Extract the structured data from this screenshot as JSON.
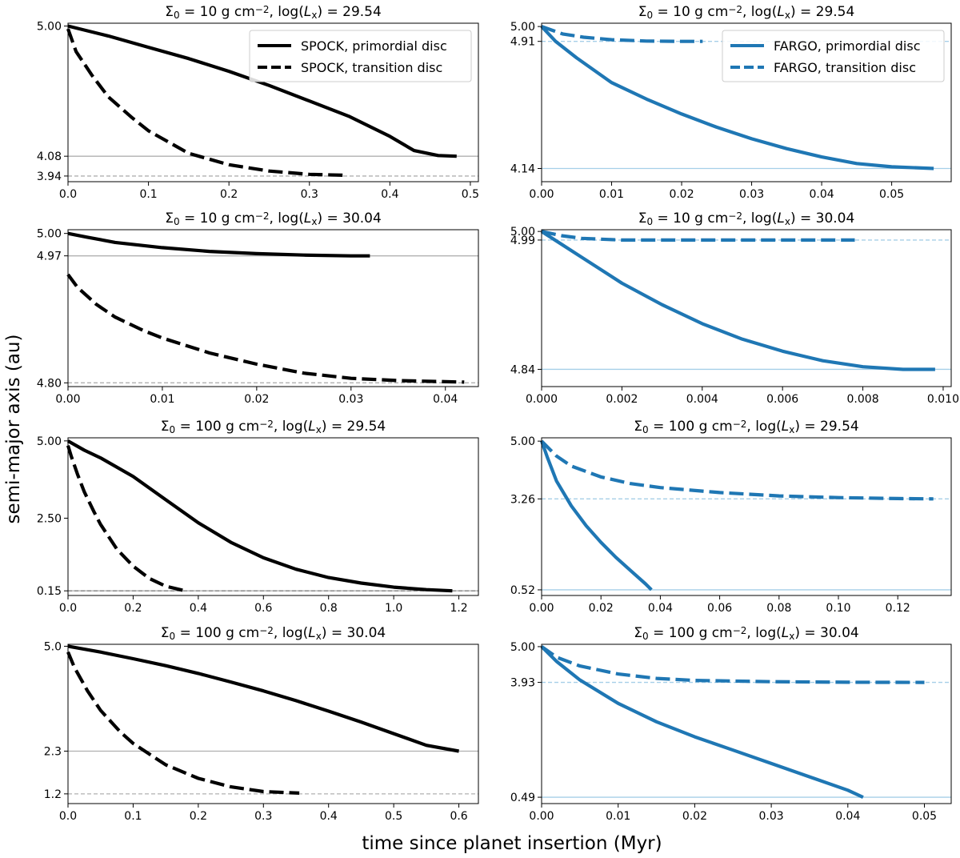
{
  "figure": {
    "ylabel": "semi-major axis (au)",
    "xlabel": "time since planet insertion (Myr)"
  },
  "colors": {
    "spock": "#000000",
    "fargo": "#1f77b4",
    "spock_ref": "#b0b0b0",
    "fargo_ref": "#a6cfe8"
  },
  "chart_data": [
    {
      "id": "p11",
      "type": "line",
      "row": 0,
      "col": 0,
      "title_parts": [
        "Σ",
        "0",
        " = 10 g cm",
        "−2",
        ", log(",
        "L",
        "x",
        ") = 29.54"
      ],
      "xlim": [
        0,
        0.51
      ],
      "ylim": [
        3.9,
        5.02
      ],
      "xticks": [
        "0.0",
        "0.1",
        "0.2",
        "0.3",
        "0.4",
        "0.5"
      ],
      "yticks": [
        "5.00",
        "4.08",
        "3.94"
      ],
      "reference_lines": [
        {
          "y": 4.08,
          "style": "solid",
          "color": "#b0b0b0"
        },
        {
          "y": 3.94,
          "style": "dashed",
          "color": "#b0b0b0"
        }
      ],
      "legend": {
        "position": "top-right",
        "entries": [
          {
            "label": "SPOCK, primordial disc",
            "style": "solid",
            "color": "#000000"
          },
          {
            "label": "SPOCK, transition disc",
            "style": "dashed",
            "color": "#000000"
          }
        ]
      },
      "series": [
        {
          "name": "SPOCK, primordial disc",
          "style": "solid",
          "color": "#000000",
          "x": [
            0,
            0.05,
            0.1,
            0.15,
            0.2,
            0.25,
            0.3,
            0.35,
            0.4,
            0.43,
            0.46,
            0.483
          ],
          "y": [
            5.0,
            4.93,
            4.85,
            4.77,
            4.68,
            4.58,
            4.47,
            4.36,
            4.22,
            4.12,
            4.085,
            4.08
          ]
        },
        {
          "name": "SPOCK, transition disc",
          "style": "dashed",
          "color": "#000000",
          "x": [
            0,
            0.01,
            0.03,
            0.05,
            0.08,
            0.1,
            0.15,
            0.2,
            0.25,
            0.3,
            0.345
          ],
          "y": [
            4.98,
            4.82,
            4.65,
            4.5,
            4.35,
            4.26,
            4.1,
            4.02,
            3.975,
            3.952,
            3.945
          ]
        }
      ]
    },
    {
      "id": "p12",
      "type": "line",
      "row": 0,
      "col": 1,
      "title_parts": [
        "Σ",
        "0",
        " = 10 g cm",
        "−2",
        ", log(",
        "L",
        "x",
        ") = 29.54"
      ],
      "xlim": [
        0,
        0.0585
      ],
      "ylim": [
        4.06,
        5.02
      ],
      "xticks": [
        "0.00",
        "0.01",
        "0.02",
        "0.03",
        "0.04",
        "0.05"
      ],
      "yticks": [
        "5.00",
        "4.91",
        "4.14"
      ],
      "reference_lines": [
        {
          "y": 4.91,
          "style": "dashed",
          "color": "#a6cfe8"
        },
        {
          "y": 4.14,
          "style": "solid",
          "color": "#a6cfe8"
        }
      ],
      "legend": {
        "position": "top-right",
        "entries": [
          {
            "label": "FARGO, primordial disc",
            "style": "solid",
            "color": "#1f77b4"
          },
          {
            "label": "FARGO, transition disc",
            "style": "dashed",
            "color": "#1f77b4"
          }
        ]
      },
      "series": [
        {
          "name": "FARGO, primordial disc",
          "style": "solid",
          "color": "#1f77b4",
          "x": [
            0,
            0.002,
            0.005,
            0.01,
            0.015,
            0.02,
            0.025,
            0.03,
            0.035,
            0.04,
            0.045,
            0.05,
            0.056
          ],
          "y": [
            5.0,
            4.91,
            4.81,
            4.66,
            4.56,
            4.47,
            4.39,
            4.32,
            4.26,
            4.21,
            4.17,
            4.15,
            4.14
          ]
        },
        {
          "name": "FARGO, transition disc",
          "style": "dashed",
          "color": "#1f77b4",
          "x": [
            0,
            0.003,
            0.006,
            0.01,
            0.015,
            0.02,
            0.023
          ],
          "y": [
            5.0,
            4.955,
            4.935,
            4.92,
            4.912,
            4.91,
            4.91
          ]
        }
      ]
    },
    {
      "id": "p21",
      "type": "line",
      "row": 1,
      "col": 0,
      "title_parts": [
        "Σ",
        "0",
        " = 10 g cm",
        "−2",
        ", log(",
        "L",
        "x",
        ") = 30.04"
      ],
      "xlim": [
        0,
        0.0435
      ],
      "ylim": [
        4.795,
        5.005
      ],
      "xticks": [
        "0.00",
        "0.01",
        "0.02",
        "0.03",
        "0.04"
      ],
      "yticks": [
        "5.00",
        "4.97",
        "4.80"
      ],
      "reference_lines": [
        {
          "y": 4.97,
          "style": "solid",
          "color": "#b0b0b0"
        },
        {
          "y": 4.8,
          "style": "dashed",
          "color": "#b0b0b0"
        }
      ],
      "series": [
        {
          "name": "",
          "style": "solid",
          "color": "#000000",
          "x": [
            0,
            0.002,
            0.005,
            0.01,
            0.015,
            0.02,
            0.025,
            0.03,
            0.032
          ],
          "y": [
            5.0,
            4.995,
            4.988,
            4.981,
            4.976,
            4.973,
            4.971,
            4.97,
            4.97
          ]
        },
        {
          "name": "",
          "style": "dashed",
          "color": "#000000",
          "x": [
            0,
            0.001,
            0.003,
            0.005,
            0.008,
            0.01,
            0.015,
            0.02,
            0.025,
            0.03,
            0.035,
            0.042
          ],
          "y": [
            4.945,
            4.928,
            4.905,
            4.888,
            4.87,
            4.86,
            4.84,
            4.825,
            4.813,
            4.806,
            4.803,
            4.801
          ]
        }
      ]
    },
    {
      "id": "p22",
      "type": "line",
      "row": 1,
      "col": 1,
      "title_parts": [
        "Σ",
        "0",
        " = 10 g cm",
        "−2",
        ", log(",
        "L",
        "x",
        ") = 30.04"
      ],
      "xlim": [
        0,
        0.0102
      ],
      "ylim": [
        4.82,
        5.002
      ],
      "xticks": [
        "0.000",
        "0.002",
        "0.004",
        "0.006",
        "0.008",
        "0.010"
      ],
      "yticks": [
        "5.00",
        "4.99",
        "4.84"
      ],
      "reference_lines": [
        {
          "y": 4.99,
          "style": "dashed",
          "color": "#a6cfe8"
        },
        {
          "y": 4.84,
          "style": "solid",
          "color": "#a6cfe8"
        }
      ],
      "series": [
        {
          "name": "",
          "style": "solid",
          "color": "#1f77b4",
          "x": [
            0,
            0.0005,
            0.001,
            0.002,
            0.003,
            0.004,
            0.005,
            0.006,
            0.007,
            0.008,
            0.009,
            0.0098
          ],
          "y": [
            5.0,
            4.985,
            4.97,
            4.94,
            4.915,
            4.893,
            4.875,
            4.861,
            4.85,
            4.843,
            4.84,
            4.84
          ]
        },
        {
          "name": "",
          "style": "dashed",
          "color": "#1f77b4",
          "x": [
            0,
            0.0005,
            0.001,
            0.002,
            0.004,
            0.006,
            0.0078
          ],
          "y": [
            5.0,
            4.995,
            4.992,
            4.99,
            4.99,
            4.99,
            4.99
          ]
        }
      ]
    },
    {
      "id": "p31",
      "type": "line",
      "row": 2,
      "col": 0,
      "title_parts": [
        "Σ",
        "0",
        " = 100 g cm",
        "−2",
        ", log(",
        "L",
        "x",
        ") = 29.54"
      ],
      "xlim": [
        0,
        1.26
      ],
      "ylim": [
        0.0,
        5.1
      ],
      "xticks": [
        "0.0",
        "0.2",
        "0.4",
        "0.6",
        "0.8",
        "1.0",
        "1.2"
      ],
      "yticks": [
        "5.00",
        "2.50",
        "0.15"
      ],
      "reference_lines": [
        {
          "y": 0.15,
          "style": "solid",
          "color": "#b0b0b0"
        },
        {
          "y": 0.15,
          "style": "dashed",
          "color": "#808080"
        }
      ],
      "series": [
        {
          "name": "",
          "style": "solid",
          "color": "#000000",
          "x": [
            0,
            0.05,
            0.1,
            0.2,
            0.3,
            0.4,
            0.5,
            0.6,
            0.7,
            0.8,
            0.9,
            1.0,
            1.1,
            1.18
          ],
          "y": [
            5.0,
            4.7,
            4.45,
            3.85,
            3.1,
            2.35,
            1.72,
            1.22,
            0.85,
            0.58,
            0.4,
            0.27,
            0.19,
            0.15
          ]
        },
        {
          "name": "",
          "style": "dashed",
          "color": "#000000",
          "x": [
            0,
            0.01,
            0.03,
            0.05,
            0.08,
            0.1,
            0.15,
            0.2,
            0.25,
            0.3,
            0.36
          ],
          "y": [
            4.85,
            4.5,
            3.9,
            3.35,
            2.7,
            2.3,
            1.5,
            0.95,
            0.55,
            0.3,
            0.15
          ]
        }
      ]
    },
    {
      "id": "p32",
      "type": "line",
      "row": 2,
      "col": 1,
      "title_parts": [
        "Σ",
        "0",
        " = 100 g cm",
        "−2",
        ", log(",
        "L",
        "x",
        ") = 29.54"
      ],
      "xlim": [
        0,
        0.138
      ],
      "ylim": [
        0.35,
        5.1
      ],
      "xticks": [
        "0.00",
        "0.02",
        "0.04",
        "0.06",
        "0.08",
        "0.10",
        "0.12"
      ],
      "yticks": [
        "5.00",
        "3.26",
        "0.52"
      ],
      "reference_lines": [
        {
          "y": 3.26,
          "style": "dashed",
          "color": "#a6cfe8"
        },
        {
          "y": 0.52,
          "style": "solid",
          "color": "#a6cfe8"
        }
      ],
      "series": [
        {
          "name": "",
          "style": "solid",
          "color": "#1f77b4",
          "x": [
            0,
            0.002,
            0.005,
            0.01,
            0.015,
            0.02,
            0.025,
            0.03,
            0.035,
            0.037
          ],
          "y": [
            5.0,
            4.5,
            3.8,
            3.05,
            2.45,
            1.95,
            1.5,
            1.1,
            0.7,
            0.52
          ]
        },
        {
          "name": "",
          "style": "dashed",
          "color": "#1f77b4",
          "x": [
            0,
            0.005,
            0.01,
            0.02,
            0.03,
            0.04,
            0.06,
            0.08,
            0.1,
            0.12,
            0.132
          ],
          "y": [
            5.0,
            4.55,
            4.25,
            3.92,
            3.72,
            3.6,
            3.45,
            3.35,
            3.3,
            3.27,
            3.26
          ]
        }
      ]
    },
    {
      "id": "p41",
      "type": "line",
      "row": 3,
      "col": 0,
      "title_parts": [
        "Σ",
        "0",
        " = 100 g cm",
        "−2",
        ", log(",
        "L",
        "x",
        ") = 30.04"
      ],
      "xlim": [
        0,
        0.63
      ],
      "ylim": [
        0.95,
        5.05
      ],
      "xticks": [
        "0.0",
        "0.1",
        "0.2",
        "0.3",
        "0.4",
        "0.5",
        "0.6"
      ],
      "yticks": [
        "5.0",
        "2.3",
        "1.2"
      ],
      "reference_lines": [
        {
          "y": 2.3,
          "style": "solid",
          "color": "#b0b0b0"
        },
        {
          "y": 1.2,
          "style": "dashed",
          "color": "#b0b0b0"
        }
      ],
      "series": [
        {
          "name": "",
          "style": "solid",
          "color": "#000000",
          "x": [
            0,
            0.05,
            0.1,
            0.15,
            0.2,
            0.25,
            0.3,
            0.35,
            0.4,
            0.45,
            0.5,
            0.55,
            0.6
          ],
          "y": [
            5.0,
            4.85,
            4.68,
            4.5,
            4.3,
            4.08,
            3.85,
            3.6,
            3.33,
            3.05,
            2.75,
            2.45,
            2.3
          ]
        },
        {
          "name": "",
          "style": "dashed",
          "color": "#000000",
          "x": [
            0,
            0.01,
            0.03,
            0.05,
            0.08,
            0.1,
            0.15,
            0.2,
            0.25,
            0.3,
            0.355
          ],
          "y": [
            4.85,
            4.45,
            3.85,
            3.35,
            2.8,
            2.5,
            1.95,
            1.6,
            1.38,
            1.26,
            1.22
          ]
        }
      ]
    },
    {
      "id": "p42",
      "type": "line",
      "row": 3,
      "col": 1,
      "title_parts": [
        "Σ",
        "0",
        " = 100 g cm",
        "−2",
        ", log(",
        "L",
        "x",
        ") = 30.04"
      ],
      "xlim": [
        0,
        0.0535
      ],
      "ylim": [
        0.3,
        5.07
      ],
      "xticks": [
        "0.00",
        "0.01",
        "0.02",
        "0.03",
        "0.04",
        "0.05"
      ],
      "yticks": [
        "5.00",
        "3.93",
        "0.49"
      ],
      "reference_lines": [
        {
          "y": 3.93,
          "style": "dashed",
          "color": "#a6cfe8"
        },
        {
          "y": 0.49,
          "style": "solid",
          "color": "#a6cfe8"
        }
      ],
      "series": [
        {
          "name": "",
          "style": "solid",
          "color": "#1f77b4",
          "x": [
            0,
            0.002,
            0.005,
            0.01,
            0.015,
            0.02,
            0.025,
            0.03,
            0.035,
            0.04,
            0.042
          ],
          "y": [
            5.0,
            4.55,
            4.0,
            3.3,
            2.75,
            2.3,
            1.9,
            1.5,
            1.1,
            0.7,
            0.49
          ]
        },
        {
          "name": "",
          "style": "dashed",
          "color": "#1f77b4",
          "x": [
            0,
            0.002,
            0.005,
            0.01,
            0.015,
            0.02,
            0.03,
            0.04,
            0.05
          ],
          "y": [
            5.0,
            4.68,
            4.42,
            4.18,
            4.05,
            3.99,
            3.95,
            3.935,
            3.93
          ]
        }
      ]
    }
  ]
}
